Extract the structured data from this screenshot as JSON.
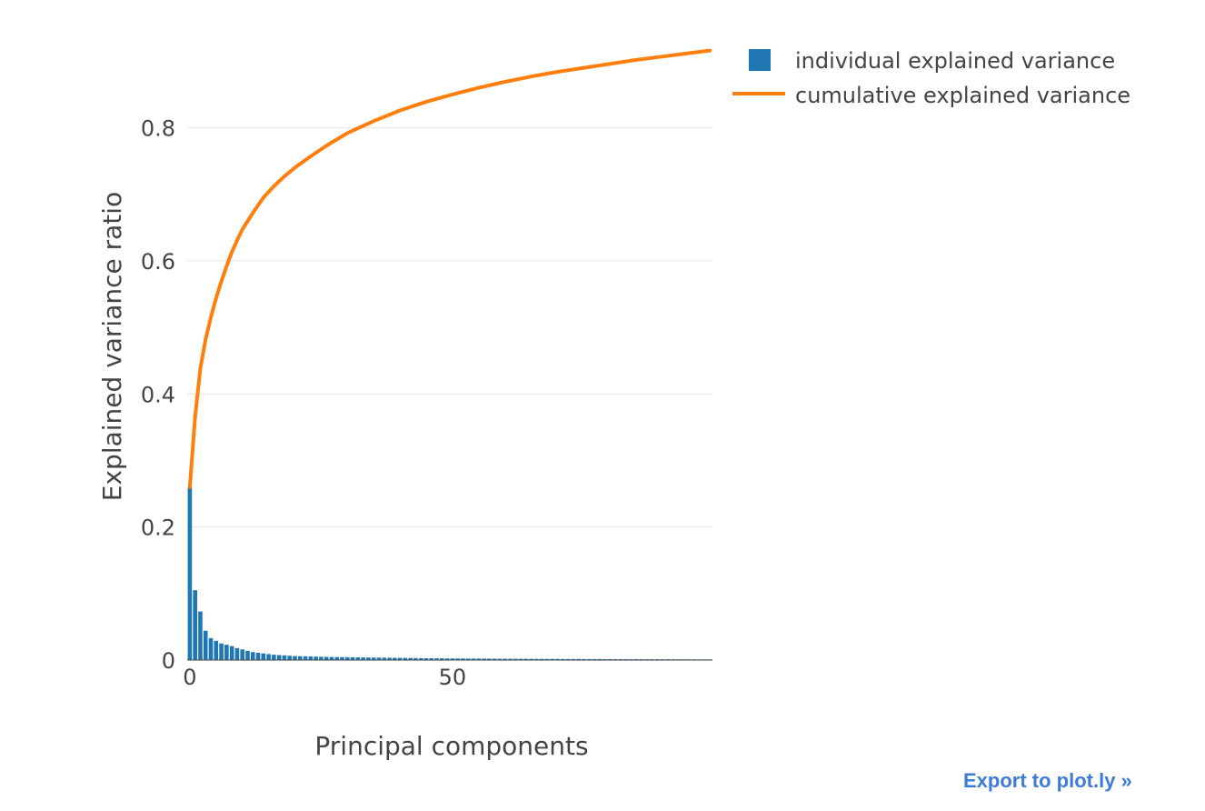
{
  "chart_data": {
    "type": "bar+line",
    "xlabel": "Principal components",
    "ylabel": "Explained variance ratio",
    "xlim": [
      -0.5,
      99.5
    ],
    "ylim": [
      0,
      0.91
    ],
    "x_ticks": [
      0,
      50
    ],
    "x_tick_labels": [
      "0",
      "50"
    ],
    "y_ticks": [
      0,
      0.2,
      0.4,
      0.6,
      0.8
    ],
    "y_tick_labels": [
      "0",
      "0.2",
      "0.4",
      "0.6",
      "0.8"
    ],
    "grid": true,
    "legend_position": "top-right, outside plot",
    "series": [
      {
        "name": "individual explained variance",
        "type": "bar",
        "color": "#1f77b4",
        "values": [
          0.26,
          0.105,
          0.073,
          0.044,
          0.033,
          0.029,
          0.025,
          0.023,
          0.021,
          0.018,
          0.016,
          0.014,
          0.012,
          0.011,
          0.01,
          0.009,
          0.008,
          0.0075,
          0.007,
          0.0065,
          0.006,
          0.0058,
          0.0056,
          0.0054,
          0.0052,
          0.005,
          0.0048,
          0.0046,
          0.0045,
          0.0044,
          0.0043,
          0.0042,
          0.0041,
          0.004,
          0.0039,
          0.0038,
          0.0037,
          0.0036,
          0.0035,
          0.0034,
          0.0033,
          0.0032,
          0.0031,
          0.003,
          0.0029,
          0.0028,
          0.0027,
          0.0026,
          0.0026,
          0.0025,
          0.0025,
          0.0024,
          0.0024,
          0.0023,
          0.0023,
          0.0022,
          0.0022,
          0.0021,
          0.0021,
          0.002,
          0.002,
          0.002,
          0.0019,
          0.0019,
          0.0019,
          0.0018,
          0.0018,
          0.0018,
          0.0017,
          0.0017,
          0.0017,
          0.0016,
          0.0016,
          0.0016,
          0.0016,
          0.0015,
          0.0015,
          0.0015,
          0.0015,
          0.0014,
          0.0014,
          0.0014,
          0.0014,
          0.0013,
          0.0013,
          0.0013,
          0.0013,
          0.0012,
          0.0012,
          0.0012,
          0.0012,
          0.0012,
          0.0011,
          0.0011,
          0.0011,
          0.0011,
          0.0011,
          0.001,
          0.001,
          0.001
        ]
      },
      {
        "name": "cumulative explained variance",
        "type": "line",
        "color": "#ff7f0e",
        "x": [
          0,
          1,
          2,
          3,
          4,
          5,
          6,
          7,
          8,
          9,
          10,
          12,
          14,
          16,
          18,
          20,
          23,
          26,
          30,
          35,
          40,
          45,
          50,
          55,
          60,
          65,
          70,
          75,
          80,
          85,
          90,
          95,
          99
        ],
        "values": [
          0.26,
          0.365,
          0.438,
          0.482,
          0.515,
          0.544,
          0.569,
          0.592,
          0.613,
          0.631,
          0.647,
          0.672,
          0.695,
          0.712,
          0.727,
          0.74,
          0.757,
          0.773,
          0.792,
          0.81,
          0.826,
          0.839,
          0.85,
          0.86,
          0.869,
          0.877,
          0.884,
          0.89,
          0.896,
          0.902,
          0.907,
          0.912,
          0.916
        ]
      }
    ]
  },
  "export_link": {
    "label": "Export to plot.ly »"
  }
}
